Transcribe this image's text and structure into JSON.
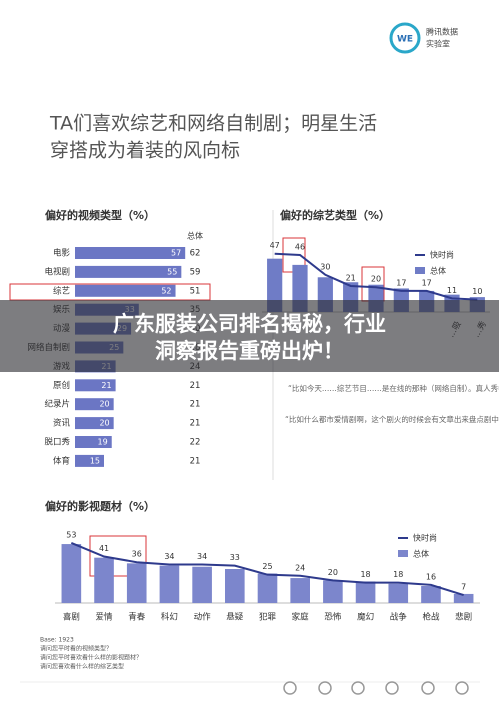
{
  "header": {
    "logo": "WE",
    "brand": [
      "腾讯数据",
      "实验室"
    ]
  },
  "title": [
    "TA们喜欢综艺和网络自制剧；明星生活",
    "穿搭成为着装的风向标"
  ],
  "chart_data": [
    {
      "type": "hbar",
      "title": "偏好的视频类型（%）",
      "categories": [
        "电影",
        "电视剧",
        "综艺",
        "娱乐",
        "动漫",
        "网络自制剧",
        "游戏",
        "原创",
        "纪录片",
        "资讯",
        "脱口秀",
        "体育"
      ],
      "series": [
        {
          "color": "#6b76c4",
          "values": [
            57,
            55,
            52,
            33,
            29,
            25,
            21,
            21,
            20,
            20,
            19,
            15
          ]
        },
        {
          "name": "总体",
          "values": [
            62,
            59,
            51,
            35,
            30,
            28,
            24,
            21,
            21,
            21,
            22,
            21
          ]
        }
      ],
      "xlim": [
        0,
        60
      ]
    },
    {
      "type": "combo",
      "title": "偏好的综艺类型（%）",
      "categories": [
        null,
        null,
        null,
        null,
        null,
        null,
        null,
        "…吸",
        "…秀"
      ],
      "series": [
        {
          "name": "快时尚",
          "type": "line",
          "color": "#2e3a8c",
          "values": [
            47,
            46,
            30,
            21,
            20,
            17,
            17,
            11,
            10
          ]
        },
        {
          "name": "总体",
          "type": "bar",
          "color": "#6f7cc6",
          "values": [
            43,
            38,
            28,
            24,
            22,
            19,
            17,
            14,
            12
          ]
        }
      ],
      "ylim": [
        0,
        50
      ]
    },
    {
      "type": "combo",
      "title": "偏好的影视题材（%）",
      "categories": [
        "喜剧",
        "爱情",
        "青春",
        "科幻",
        "动作",
        "悬疑",
        "犯罪",
        "家庭",
        "恐怖",
        "魔幻",
        "战争",
        "枪战",
        "悲剧"
      ],
      "series": [
        {
          "name": "快时尚",
          "type": "line",
          "color": "#2e3a8c",
          "values": [
            53,
            41,
            36,
            34,
            34,
            33,
            25,
            24,
            20,
            18,
            18,
            16,
            7
          ]
        },
        {
          "name": "总体",
          "type": "bar",
          "color": "#7c86cc",
          "values": [
            52,
            40,
            35,
            33,
            32,
            30,
            26,
            22,
            20,
            19,
            17,
            15,
            8
          ]
        }
      ],
      "ylim": [
        0,
        60
      ]
    }
  ],
  "quotes": [
    "“比如今天……综艺节目……是在线的那种（网络自制）。真人秀中艺人有些场合穿的服装，能吸引到我。”",
    "“比如什么都市爱情剧啊，这个剧火的时候会有文章出来盘点剧中的穿衣风格或品牌。”"
  ],
  "footnote": [
    "Base: 1923",
    "请问您平时看的视频类型？",
    "请问您平时喜欢看什么样的影视题材？",
    "请问您喜欢看什么样的综艺类型"
  ],
  "overlay_headline": [
    "广东服装公司排名揭秘，行业",
    "洞察报告重磅出炉！"
  ]
}
